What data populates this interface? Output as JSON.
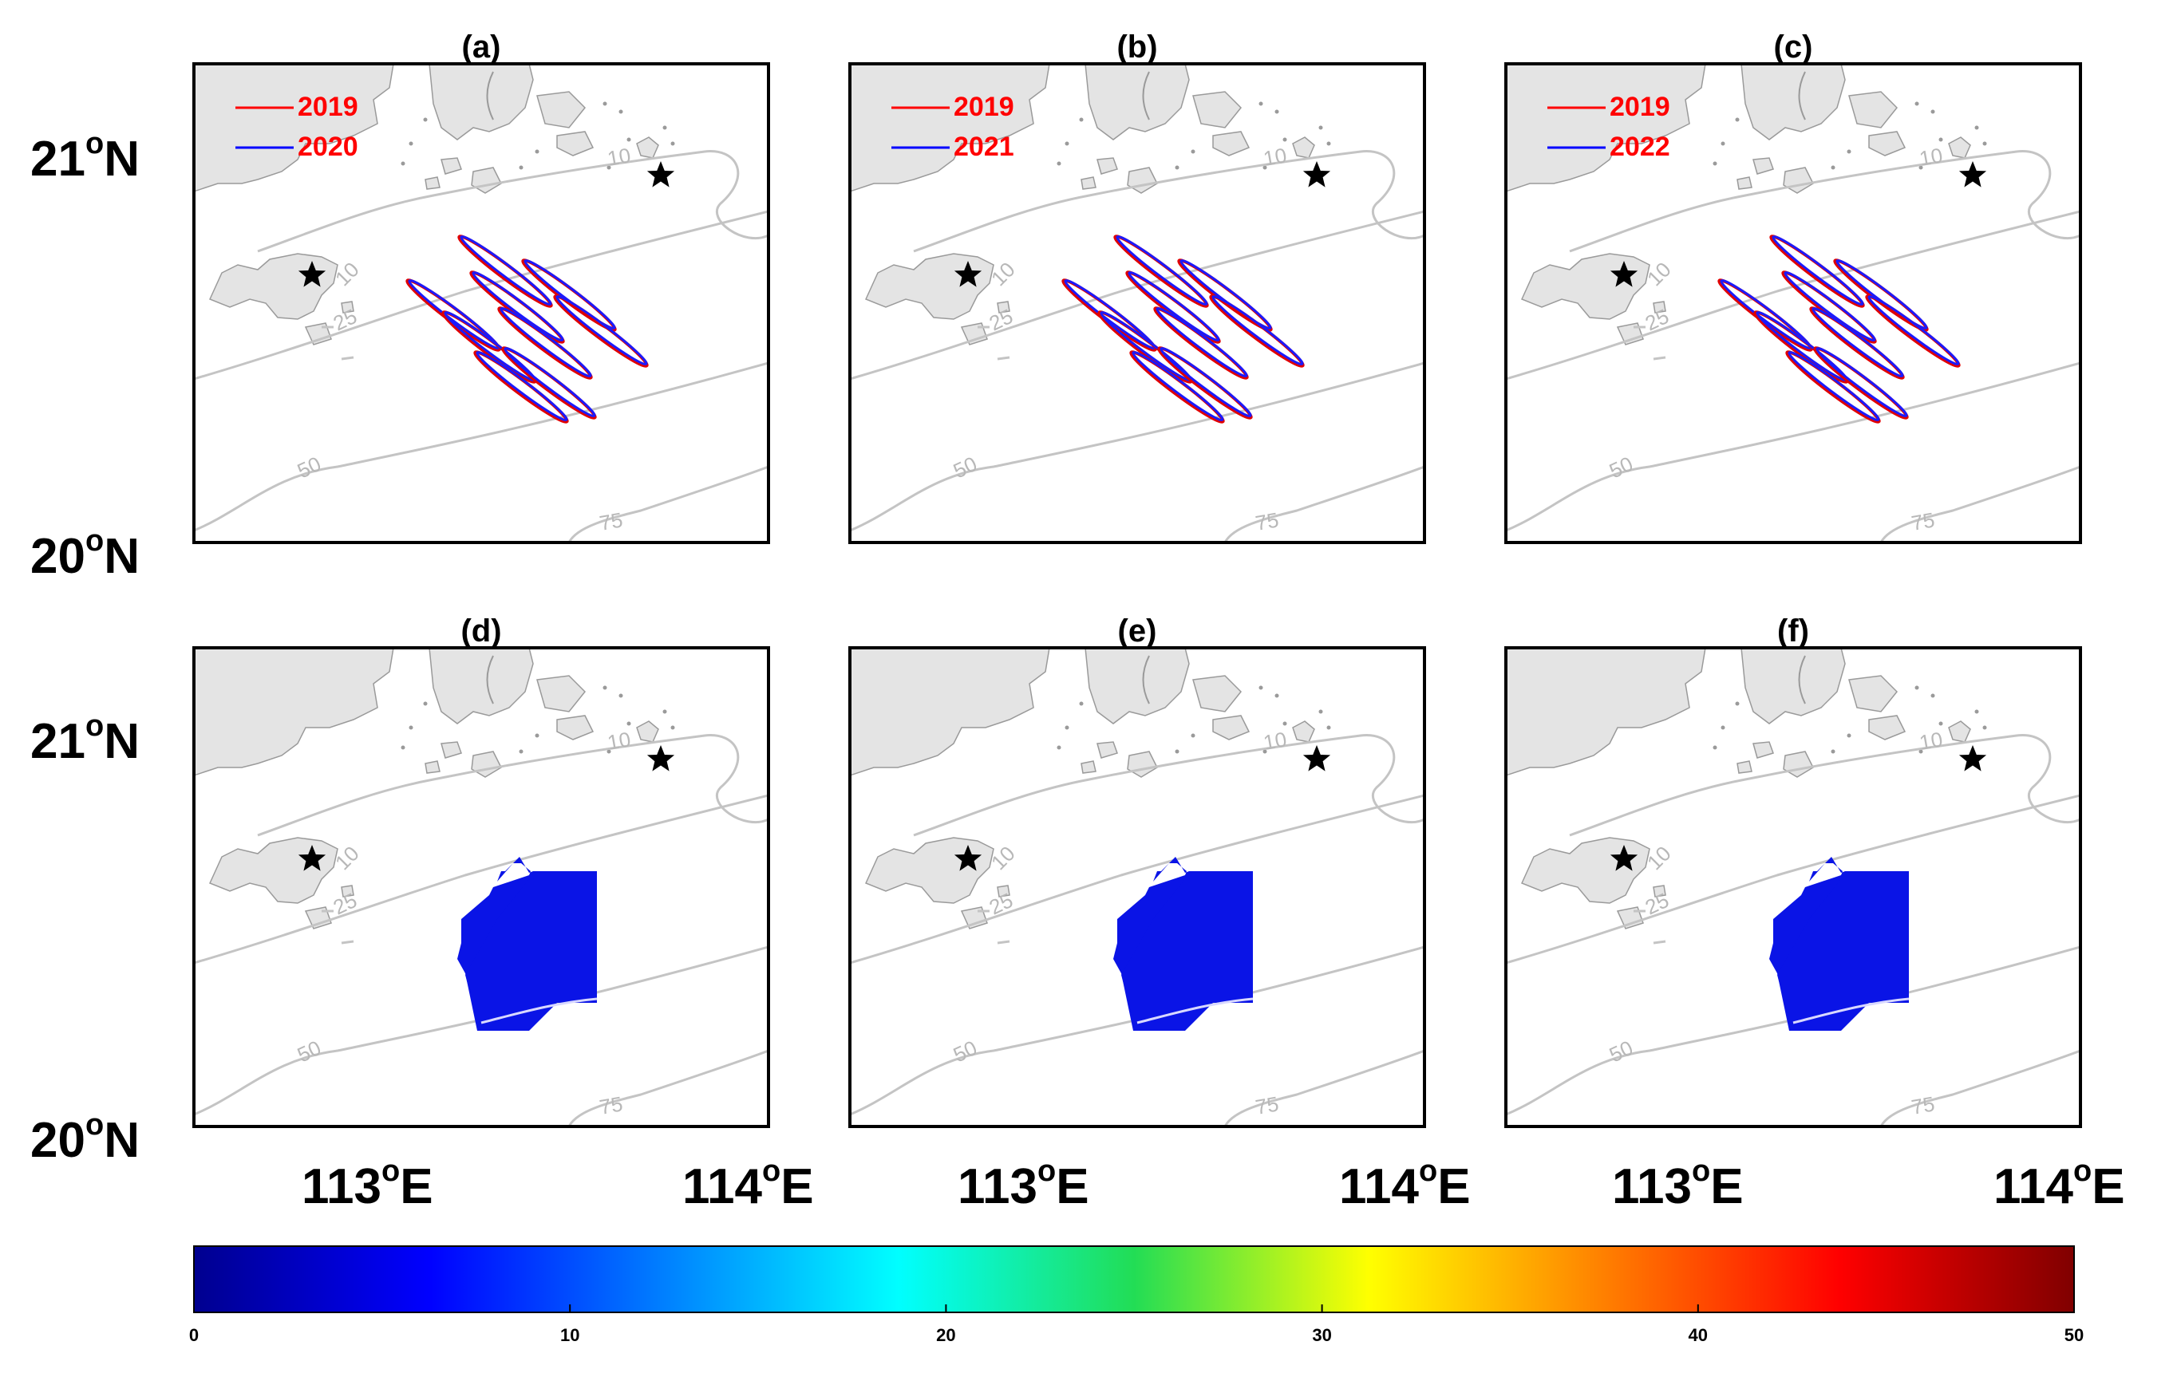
{
  "panels": [
    {
      "label": "(a)",
      "kind": "ellipse",
      "legend": [
        "2019",
        "2020"
      ]
    },
    {
      "label": "(b)",
      "kind": "ellipse",
      "legend": [
        "2019",
        "2021"
      ]
    },
    {
      "label": "(c)",
      "kind": "ellipse",
      "legend": [
        "2019",
        "2022"
      ]
    },
    {
      "label": "(d)",
      "kind": "field"
    },
    {
      "label": "(e)",
      "kind": "field"
    },
    {
      "label": "(f)",
      "kind": "field"
    }
  ],
  "legend_colors": [
    "#ff0000",
    "#0000ff"
  ],
  "lat_labels": [
    "21",
    "20"
  ],
  "lat_suffix": "N",
  "lon_labels": [
    "113",
    "114"
  ],
  "lon_suffix": "E",
  "contour_labels": {
    "c10": "10",
    "c25": "25",
    "c50": "50",
    "c75": "75"
  },
  "colorbar": {
    "min": 0,
    "max": 50,
    "ticks": [
      "0",
      "10",
      "20",
      "30",
      "40",
      "50"
    ]
  },
  "field_color": "#0a14e6",
  "ellipse_red": "#e00000",
  "ellipse_blue": "#1a1aff"
}
